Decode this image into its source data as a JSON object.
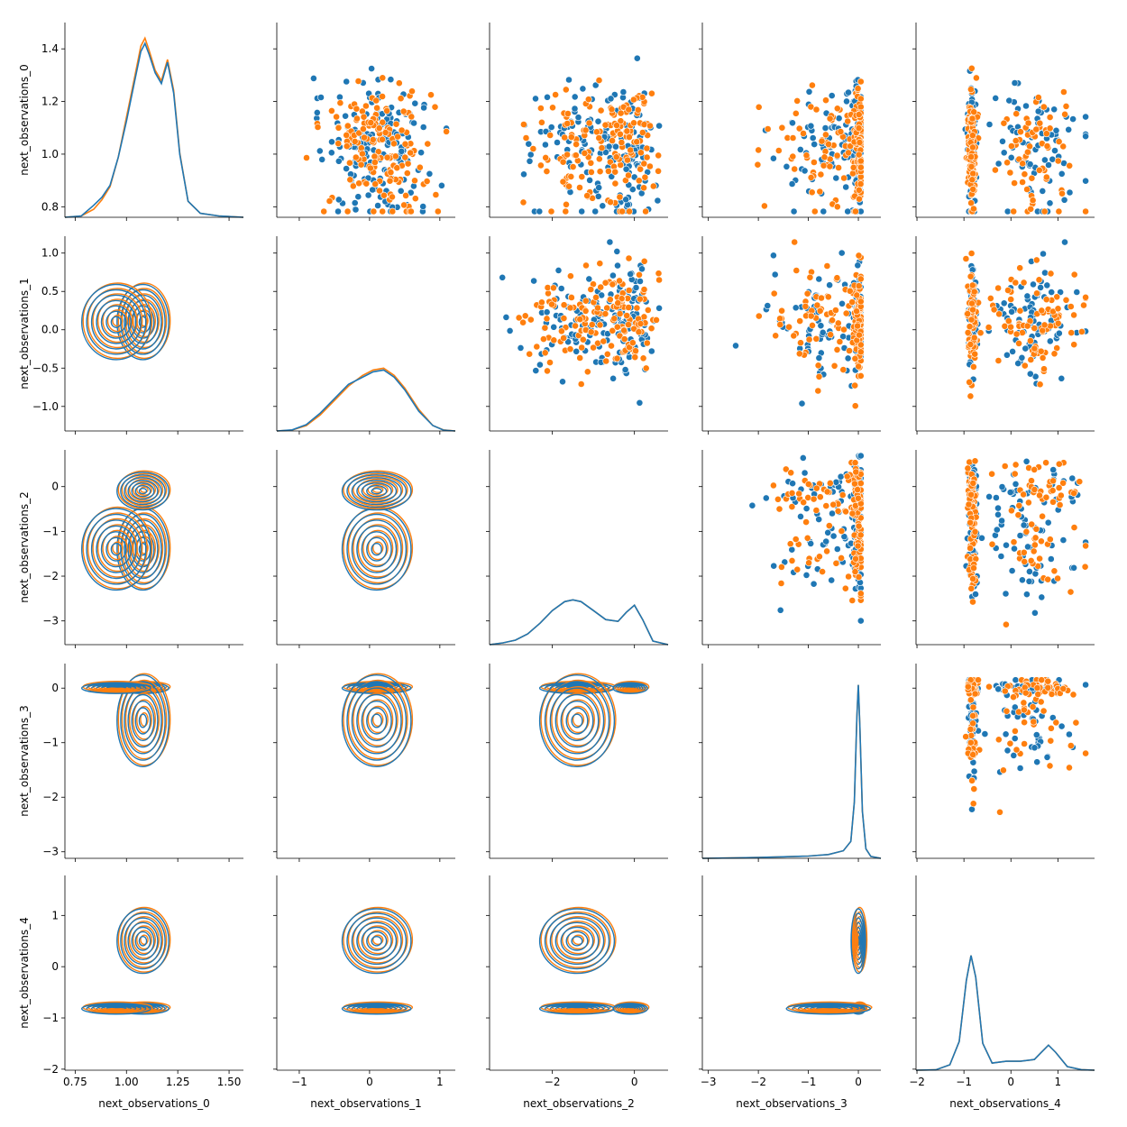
{
  "chart_data": {
    "type": "pairplot",
    "variables": [
      "next_observations_0",
      "next_observations_1",
      "next_observations_2",
      "next_observations_3",
      "next_observations_4"
    ],
    "series": [
      {
        "name": "",
        "color": "#1f77b4"
      },
      {
        "name": "",
        "color": "#ff7f0e"
      }
    ],
    "diag": "kde",
    "upper": "scatter",
    "lower": "kde",
    "legend": "none",
    "grid": false,
    "ranges": [
      [
        0.7,
        1.57
      ],
      [
        -1.32,
        1.22
      ],
      [
        -3.53,
        0.82
      ],
      [
        -3.12,
        0.45
      ],
      [
        -2.02,
        1.78
      ]
    ],
    "ticks": [
      [
        "0.75",
        "1.00",
        "1.25",
        "1.50"
      ],
      [
        "-1",
        "0",
        "1"
      ],
      [
        "-2",
        "0"
      ],
      [
        "-3",
        "-2",
        "-1",
        "0"
      ],
      [
        "-2",
        "-1",
        "0",
        "1"
      ]
    ],
    "yticks_row": [
      [
        "0.8",
        "1.0",
        "1.2",
        "1.4"
      ],
      [
        "-1.0",
        "-0.5",
        "0.0",
        "0.5",
        "1.0"
      ],
      [
        "-3",
        "-2",
        "-1",
        "0"
      ],
      [
        "-3",
        "-2",
        "-1",
        "0"
      ],
      [
        "-2",
        "-1",
        "0",
        "1"
      ]
    ],
    "ylim_row": [
      [
        0.76,
        1.5
      ],
      [
        -1.32,
        1.22
      ],
      [
        -3.53,
        0.82
      ],
      [
        -3.12,
        0.45
      ],
      [
        -2.02,
        1.78
      ]
    ],
    "diag_kde": [
      {
        "x": [
          0.7,
          0.78,
          0.84,
          0.88,
          0.92,
          0.96,
          1.0,
          1.04,
          1.07,
          1.09,
          1.11,
          1.14,
          1.17,
          1.2,
          1.23,
          1.26,
          1.3,
          1.36,
          1.45,
          1.57
        ],
        "y0": [
          0.0,
          0.01,
          0.06,
          0.13,
          0.23,
          0.45,
          0.75,
          1.05,
          1.28,
          1.34,
          1.25,
          1.1,
          1.02,
          1.18,
          0.95,
          0.48,
          0.12,
          0.03,
          0.01,
          0.0
        ],
        "y1": [
          0.0,
          0.01,
          0.09,
          0.15,
          0.24,
          0.45,
          0.72,
          1.02,
          1.24,
          1.3,
          1.22,
          1.08,
          1.0,
          1.16,
          0.93,
          0.47,
          0.12,
          0.03,
          0.01,
          0.0
        ],
        "ymax": 1.34
      },
      {
        "x": [
          -1.32,
          -1.1,
          -0.9,
          -0.7,
          -0.5,
          -0.3,
          -0.1,
          0.05,
          0.2,
          0.35,
          0.5,
          0.7,
          0.9,
          1.05,
          1.22
        ],
        "y0": [
          0.0,
          0.005,
          0.03,
          0.09,
          0.17,
          0.25,
          0.31,
          0.34,
          0.35,
          0.31,
          0.24,
          0.12,
          0.03,
          0.006,
          0.0
        ],
        "y1": [
          0.0,
          0.006,
          0.035,
          0.1,
          0.18,
          0.26,
          0.3,
          0.33,
          0.34,
          0.3,
          0.23,
          0.11,
          0.03,
          0.005,
          0.0
        ],
        "ymax": 1.0
      },
      {
        "x": [
          -3.53,
          -3.2,
          -2.9,
          -2.6,
          -2.3,
          -2.0,
          -1.7,
          -1.5,
          -1.3,
          -1.0,
          -0.7,
          -0.4,
          -0.2,
          0.0,
          0.2,
          0.45,
          0.82
        ],
        "y0": [
          0.0,
          0.01,
          0.025,
          0.06,
          0.12,
          0.19,
          0.24,
          0.25,
          0.24,
          0.19,
          0.14,
          0.13,
          0.18,
          0.22,
          0.14,
          0.02,
          0.0
        ],
        "y1": [
          0.0,
          0.01,
          0.025,
          0.06,
          0.12,
          0.19,
          0.24,
          0.25,
          0.24,
          0.19,
          0.14,
          0.13,
          0.18,
          0.22,
          0.14,
          0.02,
          0.0
        ],
        "ymax": 1.0
      },
      {
        "x": [
          -3.12,
          -2.5,
          -2.0,
          -1.5,
          -1.0,
          -0.6,
          -0.3,
          -0.15,
          -0.08,
          -0.03,
          0.0,
          0.03,
          0.08,
          0.15,
          0.25,
          0.45
        ],
        "y0": [
          0.0,
          0.002,
          0.005,
          0.008,
          0.012,
          0.02,
          0.04,
          0.09,
          0.3,
          0.75,
          0.92,
          0.7,
          0.25,
          0.05,
          0.01,
          0.0
        ],
        "y1": [
          0.0,
          0.002,
          0.005,
          0.008,
          0.012,
          0.02,
          0.04,
          0.09,
          0.3,
          0.75,
          0.92,
          0.7,
          0.25,
          0.05,
          0.01,
          0.0
        ],
        "ymax": 0.95
      },
      {
        "x": [
          -2.02,
          -1.6,
          -1.3,
          -1.1,
          -0.95,
          -0.85,
          -0.75,
          -0.6,
          -0.4,
          -0.1,
          0.2,
          0.5,
          0.65,
          0.8,
          0.95,
          1.2,
          1.5,
          1.78
        ],
        "y0": [
          0.0,
          0.002,
          0.03,
          0.16,
          0.5,
          0.64,
          0.52,
          0.15,
          0.04,
          0.05,
          0.05,
          0.06,
          0.1,
          0.14,
          0.1,
          0.02,
          0.003,
          0.0
        ],
        "y1": [
          0.0,
          0.002,
          0.03,
          0.16,
          0.5,
          0.64,
          0.52,
          0.15,
          0.04,
          0.05,
          0.05,
          0.06,
          0.1,
          0.14,
          0.1,
          0.02,
          0.003,
          0.0
        ],
        "ymax": 1.0
      }
    ]
  }
}
